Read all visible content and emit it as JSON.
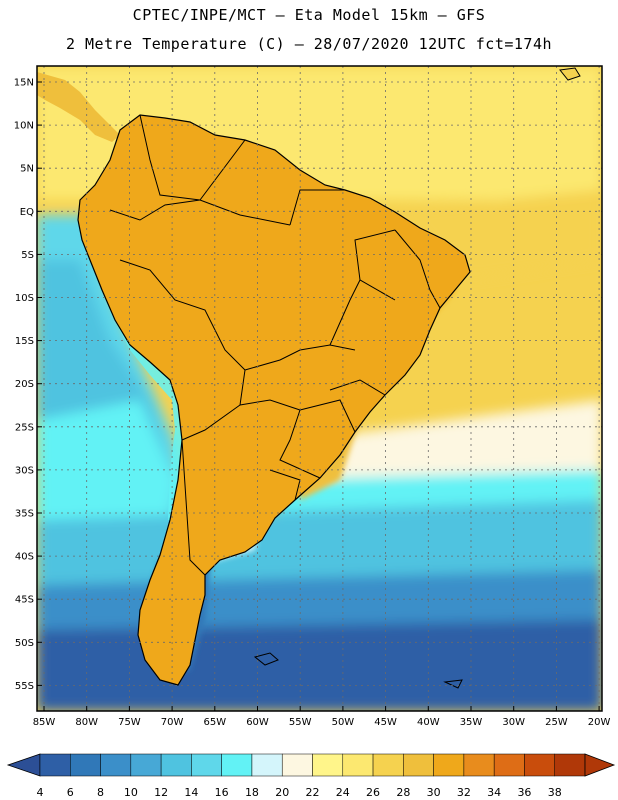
{
  "header": {
    "line1": "CPTEC/INPE/MCT –  Eta Model 15km – GFS",
    "line2": "2 Metre Temperature (C) – 28/07/2020 12UTC fct=174h"
  },
  "map": {
    "lat_labels": [
      "15N",
      "10N",
      "5N",
      "EQ",
      "5S",
      "10S",
      "15S",
      "20S",
      "25S",
      "30S",
      "35S",
      "40S",
      "45S",
      "50S",
      "55S"
    ],
    "lon_labels": [
      "85W",
      "80W",
      "75W",
      "70W",
      "65W",
      "60W",
      "55W",
      "50W",
      "45W",
      "40W",
      "35W",
      "30W",
      "25W",
      "20W"
    ]
  },
  "colorbar": {
    "ticks": [
      "4",
      "6",
      "8",
      "10",
      "12",
      "14",
      "16",
      "18",
      "20",
      "22",
      "24",
      "26",
      "28",
      "30",
      "32",
      "34",
      "36",
      "38"
    ],
    "colors": [
      "#2e5fa6",
      "#3078b8",
      "#3b8fc9",
      "#47a8d6",
      "#4fc3e0",
      "#5fd7ea",
      "#62f2f5",
      "#d4f5fb",
      "#fdf7e1",
      "#fff58a",
      "#fce870",
      "#f5d24f",
      "#efbf3c",
      "#efa81b",
      "#e88c1d",
      "#de6d16",
      "#c94d0c",
      "#b03808"
    ],
    "low_color": "#2c4f96",
    "high_color": "#b03808"
  },
  "legend_colors": {
    "ocean_cold": "#2e5fa6",
    "ocean_cool": "#47a8d6",
    "ocean_mild": "#5fd7ea",
    "ocean_warm": "#fce870",
    "land_hot": "#e88c1d",
    "land_hottest": "#c94d0c"
  }
}
